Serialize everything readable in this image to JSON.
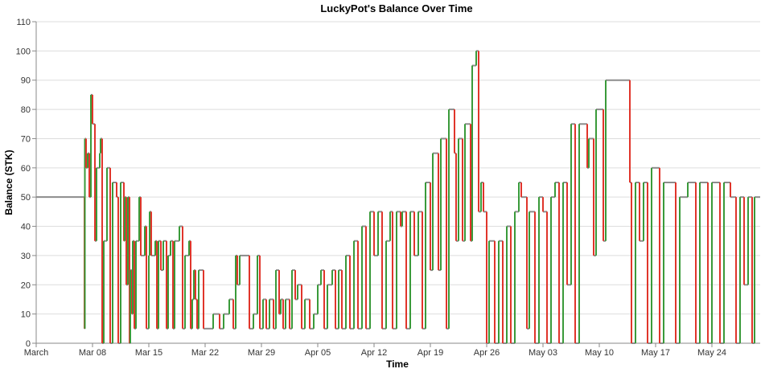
{
  "chart_data": {
    "type": "step",
    "title": "LuckyPot's Balance Over Time",
    "x_label": "Time",
    "y_label": "Balance (STK)",
    "x": [
      0,
      6.0,
      6.05,
      6.2,
      6.4,
      6.6,
      6.8,
      7.0,
      7.3,
      7.5,
      7.9,
      8.0,
      8.2,
      8.4,
      8.8,
      9.2,
      9.5,
      10.0,
      10.2,
      10.5,
      10.9,
      11.0,
      11.2,
      11.4,
      11.6,
      11.7,
      11.9,
      12.0,
      12.2,
      12.4,
      12.8,
      13.0,
      13.5,
      13.7,
      14.0,
      14.1,
      14.3,
      14.8,
      15.0,
      15.2,
      15.5,
      15.8,
      16.2,
      16.4,
      16.7,
      17.0,
      17.2,
      17.8,
      18.2,
      18.5,
      19.0,
      19.2,
      19.4,
      19.6,
      19.8,
      20.0,
      20.2,
      20.8,
      22.0,
      22.8,
      23.3,
      24.0,
      24.5,
      24.8,
      25.0,
      25.3,
      26.5,
      27.0,
      27.5,
      27.8,
      28.2,
      28.6,
      29.0,
      29.5,
      29.8,
      30.2,
      30.4,
      30.7,
      31.0,
      31.5,
      31.8,
      32.2,
      32.5,
      33.0,
      33.4,
      34.0,
      34.5,
      35.0,
      35.4,
      35.8,
      36.2,
      36.8,
      37.2,
      37.6,
      38.0,
      38.5,
      39.0,
      39.5,
      40.0,
      40.5,
      41.0,
      41.5,
      42.0,
      42.5,
      43.0,
      43.5,
      44.0,
      44.3,
      44.8,
      45.3,
      45.5,
      46.0,
      46.5,
      47.0,
      47.5,
      48.0,
      48.4,
      49.0,
      49.3,
      50.0,
      50.3,
      51.0,
      51.3,
      52.0,
      52.2,
      52.5,
      53.0,
      53.3,
      54.0,
      54.2,
      54.7,
      55.0,
      55.3,
      55.6,
      56.0,
      56.3,
      57.0,
      57.5,
      58.0,
      58.5,
      59.0,
      59.5,
      60.0,
      60.3,
      61.0,
      61.3,
      62.0,
      62.5,
      63.0,
      63.5,
      64.0,
      64.5,
      65.0,
      65.5,
      66.0,
      66.5,
      67.0,
      67.5,
      68.5,
      68.7,
      69.3,
      69.6,
      70.5,
      70.8,
      73.8,
      74.0,
      74.5,
      75.0,
      75.5,
      76.0,
      76.5,
      77.5,
      78.0,
      79.5,
      80.0,
      81.0,
      82.0,
      82.5,
      83.5,
      84.0,
      85.0,
      85.5,
      86.3,
      87.0,
      87.5,
      88.0,
      88.5,
      89.0,
      89.3
    ],
    "values": [
      50,
      5,
      70,
      60,
      65,
      50,
      85,
      75,
      35,
      60,
      65,
      70,
      0,
      35,
      60,
      0,
      55,
      50,
      0,
      55,
      35,
      50,
      20,
      50,
      0,
      25,
      10,
      35,
      5,
      35,
      50,
      30,
      40,
      5,
      30,
      45,
      30,
      35,
      5,
      35,
      25,
      35,
      5,
      30,
      35,
      5,
      35,
      40,
      5,
      30,
      35,
      5,
      15,
      25,
      15,
      5,
      25,
      5,
      10,
      5,
      10,
      15,
      5,
      30,
      20,
      30,
      5,
      10,
      30,
      5,
      15,
      5,
      15,
      5,
      25,
      10,
      15,
      5,
      15,
      5,
      25,
      15,
      20,
      5,
      15,
      5,
      10,
      20,
      25,
      5,
      20,
      25,
      5,
      25,
      5,
      30,
      5,
      35,
      5,
      40,
      5,
      45,
      30,
      45,
      5,
      35,
      45,
      5,
      45,
      40,
      45,
      5,
      45,
      30,
      45,
      5,
      55,
      25,
      65,
      25,
      70,
      5,
      80,
      65,
      35,
      70,
      35,
      75,
      35,
      95,
      100,
      45,
      55,
      45,
      0,
      35,
      0,
      35,
      0,
      40,
      0,
      45,
      55,
      50,
      5,
      45,
      0,
      50,
      45,
      0,
      50,
      55,
      0,
      55,
      20,
      75,
      0,
      75,
      60,
      70,
      30,
      80,
      35,
      90,
      55,
      0,
      55,
      35,
      55,
      0,
      60,
      0,
      55,
      0,
      50,
      55,
      0,
      55,
      0,
      55,
      0,
      55,
      50,
      0,
      50,
      20,
      50,
      0,
      50
    ],
    "colors": {
      "up": "#3a9a3a",
      "down": "#e0352b",
      "flat": "#8c8c8c"
    },
    "xlim": [
      0,
      90
    ],
    "ylim": [
      0,
      110
    ],
    "xticks": [
      {
        "value": 0,
        "label": "March"
      },
      {
        "value": 7,
        "label": "Mar 08"
      },
      {
        "value": 14,
        "label": "Mar 15"
      },
      {
        "value": 21,
        "label": "Mar 22"
      },
      {
        "value": 28,
        "label": "Mar 29"
      },
      {
        "value": 35,
        "label": "Apr 05"
      },
      {
        "value": 42,
        "label": "Apr 12"
      },
      {
        "value": 49,
        "label": "Apr 19"
      },
      {
        "value": 56,
        "label": "Apr 26"
      },
      {
        "value": 63,
        "label": "May 03"
      },
      {
        "value": 70,
        "label": "May 10"
      },
      {
        "value": 77,
        "label": "May 17"
      },
      {
        "value": 84,
        "label": "May 24"
      }
    ],
    "yticks": [
      0,
      10,
      20,
      30,
      40,
      50,
      60,
      70,
      80,
      90,
      100,
      110
    ],
    "grid": true
  }
}
